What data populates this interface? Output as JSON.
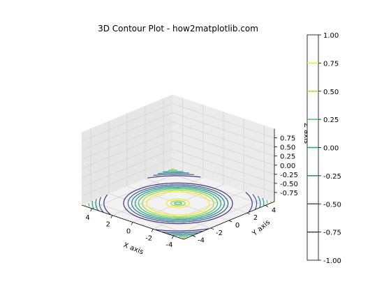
{
  "chart_data": {
    "type": "contour",
    "title": "3D Contour Plot - how2matplotlib.com",
    "xlabel": "X axis",
    "ylabel": "Y axis",
    "zlabel": "Z axis",
    "x_ticks": [
      "-4",
      "-2",
      "0",
      "2",
      "4"
    ],
    "y_ticks": [
      "-4",
      "-2",
      "0",
      "2",
      "4"
    ],
    "z_ticks": [
      "0.75",
      "0.50",
      "0.25",
      "0.00",
      "-0.25",
      "-0.50",
      "-0.75"
    ],
    "x_range": [
      -5,
      5
    ],
    "y_range": [
      -5,
      5
    ],
    "z_range": [
      -1,
      1
    ],
    "grid": true,
    "colormap": "viridis",
    "function": "sin(sqrt(x^2 + y^2))",
    "levels": [
      -1.0,
      -0.75,
      -0.5,
      -0.25,
      0.0,
      0.25,
      0.5,
      0.75,
      1.0
    ],
    "colorbar": {
      "ticks": [
        "1.00",
        "0.75",
        "0.50",
        "0.25",
        "0.00",
        "-0.25",
        "-0.50",
        "-0.75",
        "-1.00"
      ],
      "colors": [
        "#440154",
        "#46327e",
        "#365c8d",
        "#277f8e",
        "#1fa187",
        "#4ac16d",
        "#a0da39",
        "#fde725"
      ]
    }
  }
}
